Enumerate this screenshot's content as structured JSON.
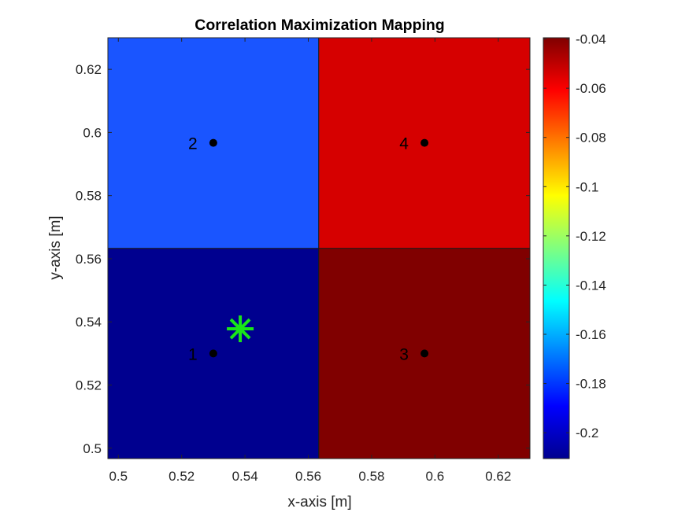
{
  "chart_data": {
    "type": "heatmap",
    "title": "Correlation Maximization Mapping",
    "xlabel": "x-axis [m]",
    "ylabel": "y-axis [m]",
    "xlim": [
      0.4967,
      0.63
    ],
    "ylim": [
      0.4967,
      0.63
    ],
    "xticks": [
      0.5,
      0.52,
      0.54,
      0.56,
      0.58,
      0.6,
      0.62
    ],
    "yticks": [
      0.5,
      0.52,
      0.54,
      0.56,
      0.58,
      0.6,
      0.62
    ],
    "grid": false,
    "colormap": "jet",
    "colorbar": {
      "clim": [
        -0.2105,
        -0.0395
      ],
      "ticks": [
        -0.04,
        -0.06,
        -0.08,
        -0.1,
        -0.12,
        -0.14,
        -0.16,
        -0.18,
        -0.2
      ]
    },
    "cells": [
      {
        "id": "1",
        "x0": 0.4967,
        "x1": 0.5633,
        "y0": 0.4967,
        "y1": 0.5633,
        "value": -0.2105,
        "color": "#00008f"
      },
      {
        "id": "2",
        "x0": 0.4967,
        "x1": 0.5633,
        "y0": 0.5633,
        "y1": 0.63,
        "value": -0.185,
        "color": "#1a55ff"
      },
      {
        "id": "3",
        "x0": 0.5633,
        "x1": 0.63,
        "y0": 0.4967,
        "y1": 0.5633,
        "value": -0.0395,
        "color": "#800000"
      },
      {
        "id": "4",
        "x0": 0.5633,
        "x1": 0.63,
        "y0": 0.5633,
        "y1": 0.63,
        "value": -0.056,
        "color": "#d60000"
      }
    ],
    "points": [
      {
        "label": "1",
        "x": 0.53,
        "y": 0.53
      },
      {
        "label": "2",
        "x": 0.53,
        "y": 0.5967
      },
      {
        "label": "3",
        "x": 0.5967,
        "y": 0.53
      },
      {
        "label": "4",
        "x": 0.5967,
        "y": 0.5967
      }
    ],
    "estimate": {
      "x": 0.5385,
      "y": 0.5378,
      "color": "#19e619"
    }
  }
}
